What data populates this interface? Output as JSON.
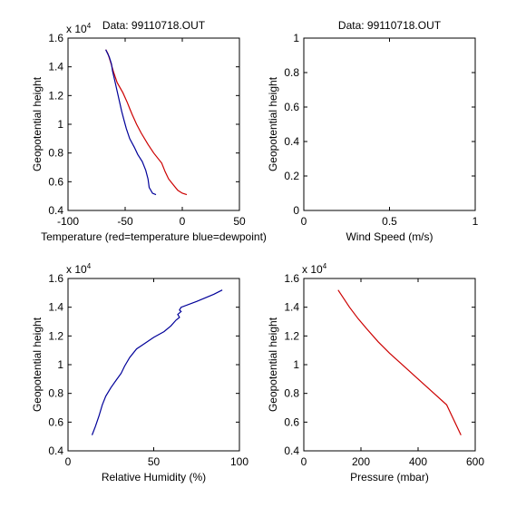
{
  "chart_data": [
    {
      "id": "temp",
      "type": "line",
      "title": "Data: 99110718.OUT",
      "xlabel": "Temperature (red=temperature blue=dewpoint)",
      "ylabel": "Geopotential height",
      "exponent": "x 10",
      "exponent_power": "4",
      "xlim": [
        -100,
        50
      ],
      "ylim": [
        0.4,
        1.6
      ],
      "xticks": [
        -100,
        -50,
        0,
        50
      ],
      "xtick_labels": [
        "-100",
        "-50",
        "0",
        "50"
      ],
      "yticks": [
        0.4,
        0.6,
        0.8,
        1.0,
        1.2,
        1.4,
        1.6
      ],
      "ytick_labels": [
        "0.4",
        "0.6",
        "0.8",
        "1",
        "1.2",
        "1.4",
        "1.6"
      ],
      "series": [
        {
          "name": "temperature",
          "color": "#cc0000",
          "x": [
            -67,
            -65,
            -63,
            -60,
            -57,
            -52,
            -48,
            -46,
            -44,
            -40,
            -36,
            -30,
            -25,
            -18,
            -15,
            -12,
            -8,
            -4,
            0,
            4
          ],
          "y": [
            1.52,
            1.49,
            1.44,
            1.36,
            1.29,
            1.22,
            1.15,
            1.11,
            1.07,
            1.0,
            0.94,
            0.86,
            0.8,
            0.73,
            0.67,
            0.62,
            0.58,
            0.54,
            0.52,
            0.51
          ]
        },
        {
          "name": "dewpoint",
          "color": "#000099",
          "x": [
            -67,
            -64,
            -62,
            -61,
            -59,
            -57,
            -55,
            -53,
            -51,
            -49,
            -46,
            -42,
            -39,
            -35,
            -32,
            -30,
            -29,
            -26,
            -23
          ],
          "y": [
            1.52,
            1.47,
            1.42,
            1.37,
            1.3,
            1.23,
            1.16,
            1.09,
            1.03,
            0.97,
            0.9,
            0.84,
            0.79,
            0.74,
            0.68,
            0.62,
            0.56,
            0.52,
            0.51
          ]
        }
      ]
    },
    {
      "id": "wind",
      "type": "line",
      "title": "Data: 99110718.OUT",
      "xlabel": "Wind Speed (m/s)",
      "ylabel": "Geopotential height",
      "xlim": [
        0,
        1
      ],
      "ylim": [
        0,
        1
      ],
      "xticks": [
        0,
        0.5,
        1
      ],
      "xtick_labels": [
        "0",
        "0.5",
        "1"
      ],
      "yticks": [
        0,
        0.2,
        0.4,
        0.6,
        0.8,
        1
      ],
      "ytick_labels": [
        "0",
        "0.2",
        "0.4",
        "0.6",
        "0.8",
        "1"
      ],
      "series": []
    },
    {
      "id": "rh",
      "type": "line",
      "title": "",
      "xlabel": "Relative Humidity (%)",
      "ylabel": "Geopotential height",
      "exponent": "x 10",
      "exponent_power": "4",
      "xlim": [
        0,
        100
      ],
      "ylim": [
        0.4,
        1.6
      ],
      "xticks": [
        0,
        50,
        100
      ],
      "xtick_labels": [
        "0",
        "50",
        "100"
      ],
      "yticks": [
        0.4,
        0.6,
        0.8,
        1.0,
        1.2,
        1.4,
        1.6
      ],
      "ytick_labels": [
        "0.4",
        "0.6",
        "0.8",
        "1",
        "1.2",
        "1.4",
        "1.6"
      ],
      "series": [
        {
          "name": "relative humidity",
          "color": "#000099",
          "x": [
            14,
            16,
            18,
            20,
            22,
            25,
            28,
            31,
            33,
            36,
            40,
            45,
            50,
            56,
            60,
            63,
            65,
            64,
            66,
            65,
            66,
            75,
            85,
            90
          ],
          "y": [
            0.51,
            0.57,
            0.64,
            0.72,
            0.78,
            0.84,
            0.89,
            0.94,
            0.99,
            1.05,
            1.11,
            1.15,
            1.19,
            1.23,
            1.27,
            1.31,
            1.33,
            1.35,
            1.37,
            1.38,
            1.4,
            1.44,
            1.49,
            1.52
          ]
        }
      ]
    },
    {
      "id": "pres",
      "type": "line",
      "title": "",
      "xlabel": "Pressure (mbar)",
      "ylabel": "Geopotential height",
      "exponent": "x 10",
      "exponent_power": "4",
      "xlim": [
        0,
        600
      ],
      "ylim": [
        0.4,
        1.6
      ],
      "xticks": [
        0,
        200,
        400,
        600
      ],
      "xtick_labels": [
        "0",
        "200",
        "400",
        "600"
      ],
      "yticks": [
        0.4,
        0.6,
        0.8,
        1.0,
        1.2,
        1.4,
        1.6
      ],
      "ytick_labels": [
        "0.4",
        "0.6",
        "0.8",
        "1",
        "1.2",
        "1.4",
        "1.6"
      ],
      "series": [
        {
          "name": "pressure",
          "color": "#cc0000",
          "x": [
            120,
            140,
            160,
            190,
            220,
            260,
            300,
            350,
            400,
            450,
            500,
            550
          ],
          "y": [
            1.52,
            1.46,
            1.4,
            1.32,
            1.25,
            1.16,
            1.08,
            0.99,
            0.9,
            0.81,
            0.72,
            0.51
          ]
        }
      ]
    }
  ]
}
